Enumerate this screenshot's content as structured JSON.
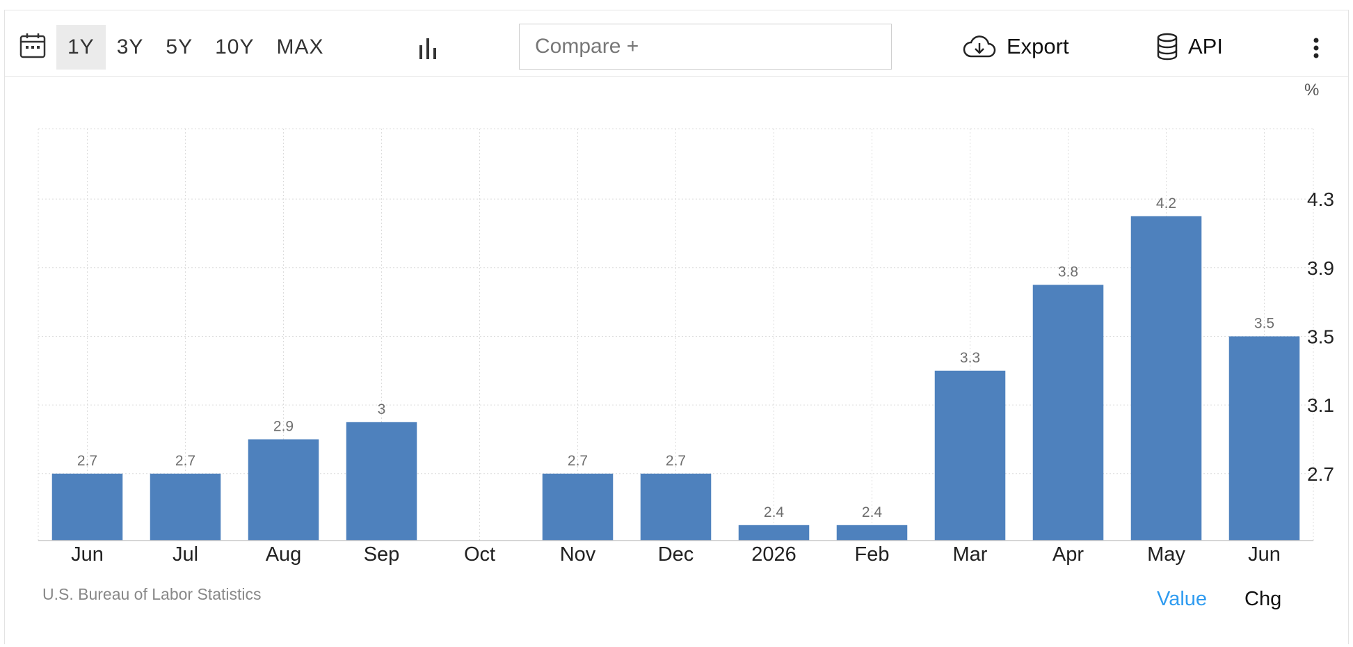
{
  "toolbar": {
    "ranges": [
      "1Y",
      "3Y",
      "5Y",
      "10Y",
      "MAX"
    ],
    "active_range": "1Y",
    "compare_placeholder": "Compare +",
    "export_label": "Export",
    "api_label": "API",
    "icons": {
      "calendar": "calendar-icon",
      "chart_type": "bar-chart-icon",
      "export": "cloud-download-icon",
      "api": "database-icon",
      "more": "more-vertical-icon"
    }
  },
  "chart_data": {
    "type": "bar",
    "unit": "%",
    "categories": [
      "Jun",
      "Jul",
      "Aug",
      "Sep",
      "Oct",
      "Nov",
      "Dec",
      "2026",
      "Feb",
      "Mar",
      "Apr",
      "May",
      "Jun"
    ],
    "values": [
      2.7,
      2.7,
      2.9,
      3,
      null,
      2.7,
      2.7,
      2.4,
      2.4,
      3.3,
      3.8,
      4.2,
      3.5
    ],
    "value_labels": [
      "2.7",
      "2.7",
      "2.9",
      "3",
      "",
      "2.7",
      "2.7",
      "2.4",
      "2.4",
      "3.3",
      "3.8",
      "4.2",
      "3.5"
    ],
    "y_ticks": [
      2.7,
      3.1,
      3.5,
      3.9,
      4.3
    ],
    "y_tick_labels": [
      "2.7",
      "3.1",
      "3.5",
      "3.9",
      "4.3"
    ],
    "ylim": [
      2.31,
      4.71
    ],
    "y_axis_side": "right",
    "grid": true,
    "bar_color": "#4e81bd",
    "label_color": "#6e6e6e"
  },
  "footer": {
    "source": "U.S. Bureau of Labor Statistics",
    "toggle_value": "Value",
    "toggle_chg": "Chg",
    "active_color": "#2e9bf0"
  }
}
